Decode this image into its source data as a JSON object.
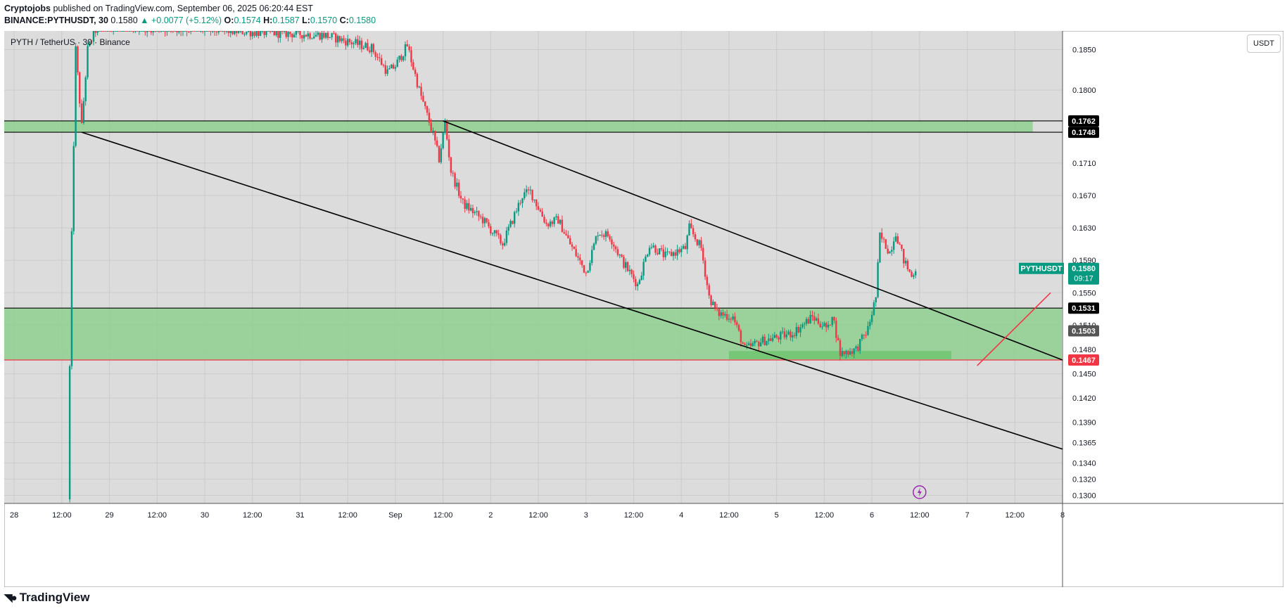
{
  "header": {
    "publisher": "Cryptojobs",
    "published_text": "published on TradingView.com, September 06, 2025 06:20:44 EST",
    "symbol": "BINANCE:PYTHUSDT, 30",
    "last": "0.1580",
    "change": "▲ +0.0077 (+5.12%)",
    "o_label": "O:",
    "o": "0.1574",
    "h_label": "H:",
    "h": "0.1587",
    "l_label": "L:",
    "l": "0.1570",
    "c_label": "C:",
    "c": "0.1580"
  },
  "chart_title": "PYTH / TetherUS · 30 · Binance",
  "currency_button": "USDT",
  "footer": {
    "brand": "TradingView"
  },
  "colors": {
    "up": "#089981",
    "down": "#f23645",
    "zone": "#8fcf8f",
    "bg": "#dcdcdc"
  },
  "chart_data": {
    "type": "candlestick",
    "x_range": [
      "2025-08-27T21:30",
      "2025-09-08T00:00"
    ],
    "y_range": [
      0.129,
      0.1873
    ],
    "y_ticks": [
      {
        "v": 0.185,
        "label": "0.1850"
      },
      {
        "v": 0.18,
        "label": "0.1800"
      },
      {
        "v": 0.171,
        "label": "0.1710"
      },
      {
        "v": 0.167,
        "label": "0.1670"
      },
      {
        "v": 0.163,
        "label": "0.1630"
      },
      {
        "v": 0.159,
        "label": "0.1590"
      },
      {
        "v": 0.155,
        "label": "0.1550"
      },
      {
        "v": 0.151,
        "label": "0.1510"
      },
      {
        "v": 0.148,
        "label": "0.1480"
      },
      {
        "v": 0.145,
        "label": "0.1450"
      },
      {
        "v": 0.142,
        "label": "0.1420"
      },
      {
        "v": 0.139,
        "label": "0.1390"
      },
      {
        "v": 0.1365,
        "label": "0.1365"
      },
      {
        "v": 0.134,
        "label": "0.1340"
      },
      {
        "v": 0.132,
        "label": "0.1320"
      },
      {
        "v": 0.13,
        "label": "0.1300"
      }
    ],
    "x_ticks": [
      {
        "t": "2025-08-28T00:00",
        "label": "28"
      },
      {
        "t": "2025-08-28T12:00",
        "label": "12:00"
      },
      {
        "t": "2025-08-29T00:00",
        "label": "29"
      },
      {
        "t": "2025-08-29T12:00",
        "label": "12:00"
      },
      {
        "t": "2025-08-30T00:00",
        "label": "30"
      },
      {
        "t": "2025-08-30T12:00",
        "label": "12:00"
      },
      {
        "t": "2025-08-31T00:00",
        "label": "31"
      },
      {
        "t": "2025-08-31T12:00",
        "label": "12:00"
      },
      {
        "t": "2025-09-01T00:00",
        "label": "Sep"
      },
      {
        "t": "2025-09-01T12:00",
        "label": "12:00"
      },
      {
        "t": "2025-09-02T00:00",
        "label": "2"
      },
      {
        "t": "2025-09-02T12:00",
        "label": "12:00"
      },
      {
        "t": "2025-09-03T00:00",
        "label": "3"
      },
      {
        "t": "2025-09-03T12:00",
        "label": "12:00"
      },
      {
        "t": "2025-09-04T00:00",
        "label": "4"
      },
      {
        "t": "2025-09-04T12:00",
        "label": "12:00"
      },
      {
        "t": "2025-09-05T00:00",
        "label": "5"
      },
      {
        "t": "2025-09-05T12:00",
        "label": "12:00"
      },
      {
        "t": "2025-09-06T00:00",
        "label": "6"
      },
      {
        "t": "2025-09-06T12:00",
        "label": "12:00"
      },
      {
        "t": "2025-09-07T00:00",
        "label": "7"
      },
      {
        "t": "2025-09-07T12:00",
        "label": "12:00"
      },
      {
        "t": "2025-09-08T00:00",
        "label": "8"
      }
    ],
    "price_path": [
      [
        "2025-08-28T13:30",
        0.1295
      ],
      [
        "2025-08-28T14:30",
        0.162
      ],
      [
        "2025-08-28T15:30",
        0.185
      ],
      [
        "2025-08-28T17:00",
        0.1755
      ],
      [
        "2025-08-28T18:30",
        0.185
      ],
      [
        "2025-08-28T21:00",
        0.188
      ],
      [
        "2025-08-31T06:00",
        0.1868
      ],
      [
        "2025-08-31T18:00",
        0.1852
      ],
      [
        "2025-08-31T22:00",
        0.1822
      ],
      [
        "2025-09-01T00:00",
        0.183
      ],
      [
        "2025-09-01T03:00",
        0.1855
      ],
      [
        "2025-09-01T06:00",
        0.18
      ],
      [
        "2025-09-01T09:30",
        0.1745
      ],
      [
        "2025-09-01T11:00",
        0.1715
      ],
      [
        "2025-09-01T12:30",
        0.176
      ],
      [
        "2025-09-01T14:00",
        0.17
      ],
      [
        "2025-09-01T17:00",
        0.166
      ],
      [
        "2025-09-01T22:00",
        0.164
      ],
      [
        "2025-09-02T03:00",
        0.161
      ],
      [
        "2025-09-02T08:00",
        0.167
      ],
      [
        "2025-09-02T10:00",
        0.1675
      ],
      [
        "2025-09-02T14:00",
        0.1635
      ],
      [
        "2025-09-02T17:00",
        0.164
      ],
      [
        "2025-09-02T20:00",
        0.161
      ],
      [
        "2025-09-03T00:00",
        0.1575
      ],
      [
        "2025-09-03T03:00",
        0.1625
      ],
      [
        "2025-09-03T06:00",
        0.162
      ],
      [
        "2025-09-03T09:00",
        0.159
      ],
      [
        "2025-09-03T13:00",
        0.156
      ],
      [
        "2025-09-03T16:00",
        0.161
      ],
      [
        "2025-09-03T20:00",
        0.1595
      ],
      [
        "2025-09-04T01:00",
        0.1605
      ],
      [
        "2025-09-04T02:00",
        0.163
      ],
      [
        "2025-09-04T05:00",
        0.1605
      ],
      [
        "2025-09-04T07:00",
        0.1545
      ],
      [
        "2025-09-04T09:00",
        0.1525
      ],
      [
        "2025-09-04T13:00",
        0.152
      ],
      [
        "2025-09-04T16:00",
        0.148
      ],
      [
        "2025-09-04T20:00",
        0.149
      ],
      [
        "2025-09-05T04:00",
        0.15
      ],
      [
        "2025-09-05T09:00",
        0.152
      ],
      [
        "2025-09-05T13:00",
        0.1505
      ],
      [
        "2025-09-05T14:00",
        0.1525
      ],
      [
        "2025-09-05T16:00",
        0.1475
      ],
      [
        "2025-09-05T20:00",
        0.148
      ],
      [
        "2025-09-05T23:00",
        0.1505
      ],
      [
        "2025-09-06T01:00",
        0.1545
      ],
      [
        "2025-09-06T02:00",
        0.162
      ],
      [
        "2025-09-06T04:30",
        0.16
      ],
      [
        "2025-09-06T06:00",
        0.1625
      ],
      [
        "2025-09-06T08:00",
        0.159
      ],
      [
        "2025-09-06T10:00",
        0.157
      ],
      [
        "2025-09-06T11:00",
        0.158
      ]
    ],
    "zones": [
      {
        "from": 0.1748,
        "to": 0.1762,
        "t_start": "2025-08-27T21:30",
        "t_end": "2025-09-07T16:30",
        "color": "#8fcf8f"
      },
      {
        "from": 0.1467,
        "to": 0.1531,
        "t_start": "2025-08-27T21:30",
        "t_end": "2025-09-08T00:00",
        "color": "#8fcf8f"
      },
      {
        "from": 0.1468,
        "to": 0.1478,
        "t_start": "2025-09-04T12:00",
        "t_end": "2025-09-06T20:00",
        "color": "#6ec66e"
      }
    ],
    "h_lines": [
      {
        "v": 0.1762,
        "color": "#000000"
      },
      {
        "v": 0.1748,
        "color": "#000000"
      },
      {
        "v": 0.1531,
        "color": "#000000"
      },
      {
        "v": 0.1467,
        "color": "#f23645"
      }
    ],
    "trendlines": [
      {
        "t1": "2025-08-28T17:00",
        "v1": 0.1748,
        "t2": "2025-09-08T00:00",
        "v2": 0.1357,
        "color": "#000000"
      },
      {
        "t1": "2025-09-01T12:00",
        "v1": 0.1762,
        "t2": "2025-09-08T00:00",
        "v2": 0.1467,
        "color": "#000000"
      },
      {
        "t1": "2025-09-07T02:30",
        "v1": 0.146,
        "t2": "2025-09-07T21:00",
        "v2": 0.155,
        "color": "#f23645"
      }
    ],
    "price_labels": [
      {
        "v": 0.1762,
        "label": "0.1762",
        "bg": "#000000"
      },
      {
        "v": 0.1748,
        "label": "0.1748",
        "bg": "#000000"
      },
      {
        "v": 0.1531,
        "label": "0.1531",
        "bg": "#000000"
      },
      {
        "v": 0.1503,
        "label": "0.1503",
        "bg": "#555555"
      },
      {
        "v": 0.1467,
        "label": "0.1467",
        "bg": "#f23645"
      }
    ],
    "last_price": {
      "v": 0.158,
      "symbol": "PYTHUSDT",
      "label": "0.1580",
      "countdown": "09:17"
    }
  }
}
